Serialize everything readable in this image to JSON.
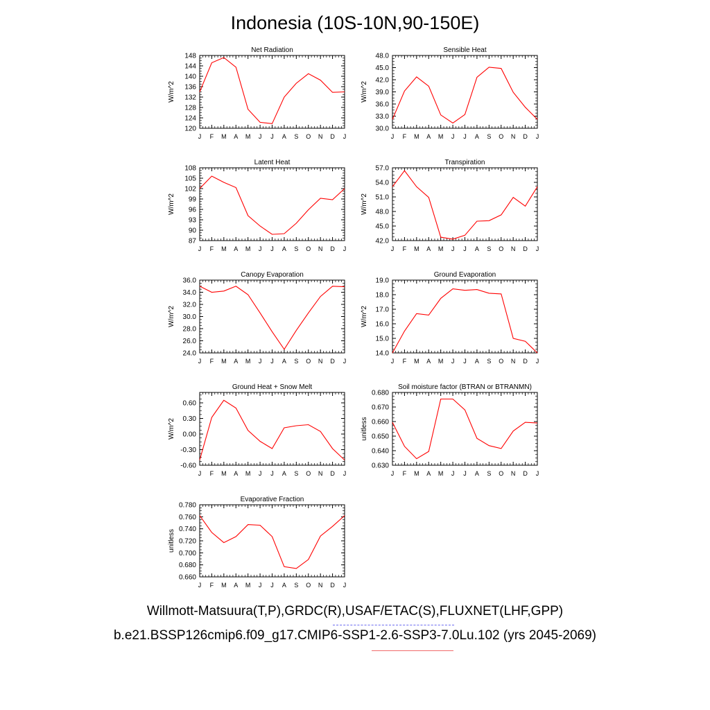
{
  "page": {
    "title": "Indonesia (10S-10N,90-150E)",
    "footer_obs": "Willmott-Matsuura(T,P),GRDC(R),USAF/ETAC(S),FLUXNET(LHF,GPP)",
    "footer_case": "b.e21.BSSP126cmip6.f09_g17.CMIP6-SSP1-2.6-SSP3-7.0Lu.102 (yrs 2045-2069)"
  },
  "colors": {
    "series": "#ff0000",
    "axis": "#000000",
    "obs_underline": "#6a6af0",
    "case_underline": "#f06a6a"
  },
  "chart_data": [
    {
      "type": "line",
      "title": "Net Radiation",
      "ylabel": "W/m^2",
      "x": [
        "J",
        "F",
        "M",
        "A",
        "M",
        "J",
        "J",
        "A",
        "S",
        "O",
        "N",
        "D",
        "J"
      ],
      "yticks": [
        "120",
        "124",
        "128",
        "132",
        "136",
        "140",
        "144",
        "148"
      ],
      "ylim": [
        120,
        148
      ],
      "series": [
        {
          "values": [
            134,
            145.2,
            147.2,
            143.5,
            127.3,
            122.3,
            121.8,
            132,
            137.3,
            141,
            138.5,
            133.8,
            134
          ]
        }
      ]
    },
    {
      "type": "line",
      "title": "Sensible Heat",
      "ylabel": "W/m^2",
      "x": [
        "J",
        "F",
        "M",
        "A",
        "M",
        "J",
        "J",
        "A",
        "S",
        "O",
        "N",
        "D",
        "J"
      ],
      "yticks": [
        "30.0",
        "33.0",
        "36.0",
        "39.0",
        "42.0",
        "45.0",
        "48.0"
      ],
      "ylim": [
        30,
        48
      ],
      "series": [
        {
          "values": [
            32.2,
            39.2,
            42.7,
            40.4,
            33.3,
            31.3,
            33.4,
            42.6,
            45.1,
            44.8,
            38.9,
            35.2,
            32.2
          ]
        }
      ]
    },
    {
      "type": "line",
      "title": "Latent Heat",
      "ylabel": "W/m^2",
      "x": [
        "J",
        "F",
        "M",
        "A",
        "M",
        "J",
        "J",
        "A",
        "S",
        "O",
        "N",
        "D",
        "J"
      ],
      "yticks": [
        "87",
        "90",
        "93",
        "96",
        "99",
        "102",
        "105",
        "108"
      ],
      "ylim": [
        87,
        108
      ],
      "series": [
        {
          "values": [
            102,
            105.6,
            103.8,
            102.3,
            94.2,
            91.2,
            88.8,
            89,
            92,
            95.9,
            99.2,
            98.8,
            102
          ]
        }
      ]
    },
    {
      "type": "line",
      "title": "Transpiration",
      "ylabel": "W/m^2",
      "x": [
        "J",
        "F",
        "M",
        "A",
        "M",
        "J",
        "J",
        "A",
        "S",
        "O",
        "N",
        "D",
        "J"
      ],
      "yticks": [
        "42.0",
        "45.0",
        "48.0",
        "51.0",
        "54.0",
        "57.0"
      ],
      "ylim": [
        42,
        57
      ],
      "series": [
        {
          "values": [
            53.1,
            56.4,
            53.1,
            50.9,
            42.7,
            42.3,
            43.1,
            46,
            46.1,
            47.3,
            50.9,
            49.1,
            53.1
          ]
        }
      ]
    },
    {
      "type": "line",
      "title": "Canopy Evaporation",
      "ylabel": "W/m^2",
      "x": [
        "J",
        "F",
        "M",
        "A",
        "M",
        "J",
        "J",
        "A",
        "S",
        "O",
        "N",
        "D",
        "J"
      ],
      "yticks": [
        "24.0",
        "26.0",
        "28.0",
        "30.0",
        "32.0",
        "34.0",
        "36.0"
      ],
      "ylim": [
        24,
        36
      ],
      "series": [
        {
          "values": [
            35,
            34,
            34.2,
            35,
            33.6,
            30.6,
            27.5,
            24.6,
            27.7,
            30.6,
            33.3,
            35,
            34.9
          ]
        }
      ]
    },
    {
      "type": "line",
      "title": "Ground Evaporation",
      "ylabel": "W/m^2",
      "x": [
        "J",
        "F",
        "M",
        "A",
        "M",
        "J",
        "J",
        "A",
        "S",
        "O",
        "N",
        "D",
        "J"
      ],
      "yticks": [
        "14.0",
        "15.0",
        "16.0",
        "17.0",
        "18.0",
        "19.0"
      ],
      "ylim": [
        14,
        19
      ],
      "series": [
        {
          "values": [
            14,
            15.5,
            16.7,
            16.6,
            17.75,
            18.4,
            18.3,
            18.35,
            18.1,
            18.05,
            15,
            14.8,
            14
          ]
        }
      ]
    },
    {
      "type": "line",
      "title": "Ground Heat + Snow Melt",
      "ylabel": "W/m^2",
      "x": [
        "J",
        "F",
        "M",
        "A",
        "M",
        "J",
        "J",
        "A",
        "S",
        "O",
        "N",
        "D",
        "J"
      ],
      "yticks": [
        "-0.60",
        "-0.30",
        "0.00",
        "0.30",
        "0.60"
      ],
      "ylim": [
        -0.6,
        0.8
      ],
      "series": [
        {
          "values": [
            -0.5,
            0.32,
            0.65,
            0.5,
            0.07,
            -0.14,
            -0.28,
            0.12,
            0.16,
            0.18,
            0.05,
            -0.28,
            -0.5
          ]
        }
      ]
    },
    {
      "type": "line",
      "title": "Soil moisture factor (BTRAN or BTRANMN)",
      "ylabel": "unitless",
      "x": [
        "J",
        "F",
        "M",
        "A",
        "M",
        "J",
        "J",
        "A",
        "S",
        "O",
        "N",
        "D",
        "J"
      ],
      "yticks": [
        "0.630",
        "0.640",
        "0.650",
        "0.660",
        "0.670",
        "0.680"
      ],
      "ylim": [
        0.63,
        0.68
      ],
      "series": [
        {
          "values": [
            0.6595,
            0.643,
            0.6345,
            0.6395,
            0.6755,
            0.6755,
            0.668,
            0.6485,
            0.6435,
            0.6415,
            0.6535,
            0.6595,
            0.659
          ]
        }
      ]
    },
    {
      "type": "line",
      "title": "Evaporative Fraction",
      "ylabel": "unitless",
      "x": [
        "J",
        "F",
        "M",
        "A",
        "M",
        "J",
        "J",
        "A",
        "S",
        "O",
        "N",
        "D",
        "J"
      ],
      "yticks": [
        "0.660",
        "0.680",
        "0.700",
        "0.720",
        "0.740",
        "0.760",
        "0.780"
      ],
      "ylim": [
        0.66,
        0.78
      ],
      "series": [
        {
          "values": [
            0.762,
            0.734,
            0.717,
            0.727,
            0.747,
            0.746,
            0.727,
            0.677,
            0.674,
            0.689,
            0.728,
            0.744,
            0.762
          ]
        }
      ]
    }
  ]
}
